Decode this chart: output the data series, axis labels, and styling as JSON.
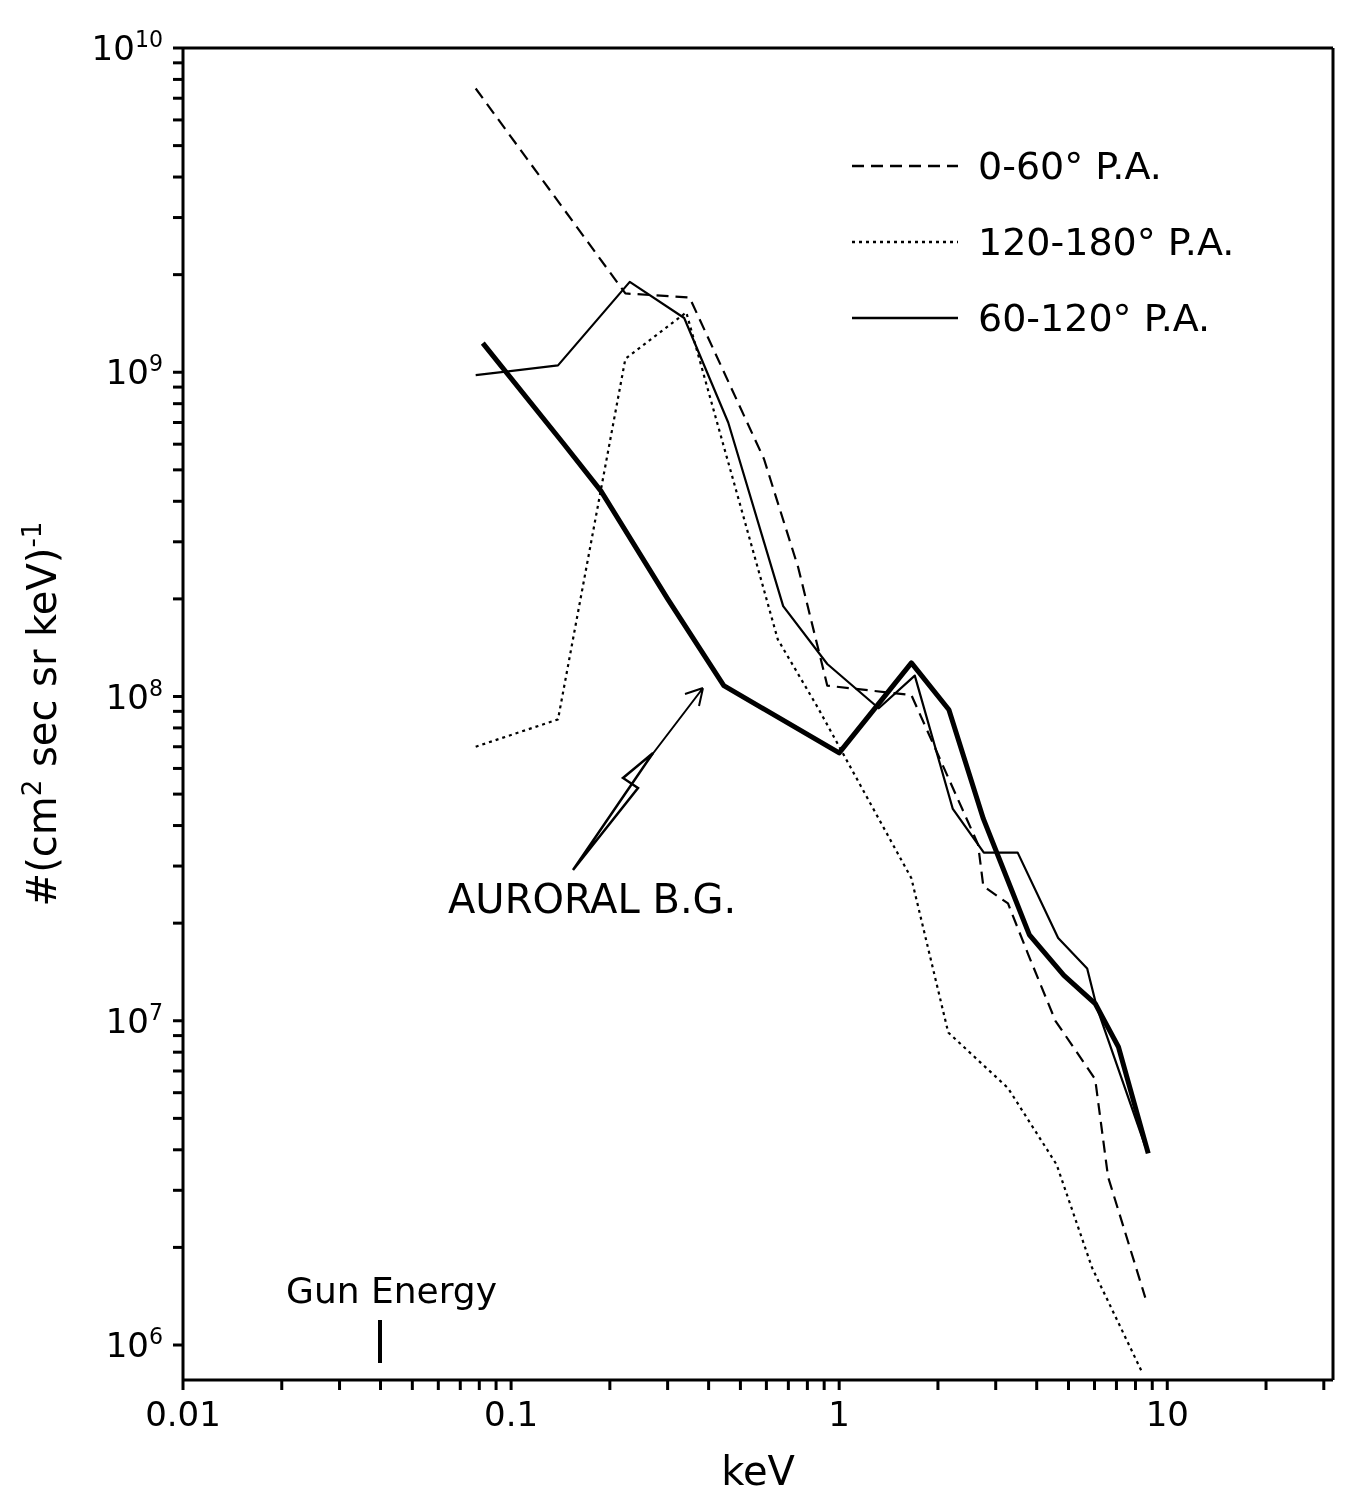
{
  "chart_data": {
    "type": "line",
    "xlabel": "keV",
    "ylabel": "#(cm$^{2}$ sec sr keV)$^{-1}$",
    "log": "xy",
    "grid": false,
    "legend": "top right",
    "xlim": [
      0.01,
      32
    ],
    "ylim": [
      780000,
      10000000000
    ],
    "xticks": [
      {
        "value": 0.01,
        "label": "0.01"
      },
      {
        "value": 0.02,
        "label": null
      },
      {
        "value": 0.03,
        "label": null
      },
      {
        "value": 0.04,
        "label": null
      },
      {
        "value": 0.05,
        "label": null
      },
      {
        "value": 0.06,
        "label": null
      },
      {
        "value": 0.07,
        "label": null
      },
      {
        "value": 0.08,
        "label": null
      },
      {
        "value": 0.09,
        "label": null
      },
      {
        "value": 0.1,
        "label": "0.1"
      },
      {
        "value": 0.2,
        "label": null
      },
      {
        "value": 0.3,
        "label": null
      },
      {
        "value": 0.4,
        "label": null
      },
      {
        "value": 0.5,
        "label": null
      },
      {
        "value": 0.6,
        "label": null
      },
      {
        "value": 0.7,
        "label": null
      },
      {
        "value": 0.8,
        "label": null
      },
      {
        "value": 0.9,
        "label": null
      },
      1,
      {
        "value": 2,
        "label": null
      },
      {
        "value": 3,
        "label": null
      },
      {
        "value": 4,
        "label": null
      },
      {
        "value": 5,
        "label": null
      },
      {
        "value": 6,
        "label": null
      },
      {
        "value": 7,
        "label": null
      },
      {
        "value": 8,
        "label": null
      },
      {
        "value": 9,
        "label": null
      },
      10,
      {
        "value": 20,
        "label": null
      },
      {
        "value": 30,
        "label": null
      }
    ],
    "yticks": [
      {
        "value": 1000000,
        "label": "10$^{6}$"
      },
      {
        "value": 2000000,
        "label": null
      },
      {
        "value": 3000000,
        "label": null
      },
      {
        "value": 4000000,
        "label": null
      },
      {
        "value": 5000000,
        "label": null
      },
      {
        "value": 6000000,
        "label": null
      },
      {
        "value": 7000000,
        "label": null
      },
      {
        "value": 8000000,
        "label": null
      },
      {
        "value": 9000000,
        "label": null
      },
      {
        "value": 10000000,
        "label": "10$^{7}$"
      },
      {
        "value": 20000000,
        "label": null
      },
      {
        "value": 30000000,
        "label": null
      },
      {
        "value": 40000000,
        "label": null
      },
      {
        "value": 50000000,
        "label": null
      },
      {
        "value": 60000000,
        "label": null
      },
      {
        "value": 70000000,
        "label": null
      },
      {
        "value": 80000000,
        "label": null
      },
      {
        "value": 90000000,
        "label": null
      },
      {
        "value": 100000000,
        "label": "10$^{8}$"
      },
      {
        "value": 200000000,
        "label": null
      },
      {
        "value": 300000000,
        "label": null
      },
      {
        "value": 400000000,
        "label": null
      },
      {
        "value": 500000000,
        "label": null
      },
      {
        "value": 600000000,
        "label": null
      },
      {
        "value": 700000000,
        "label": null
      },
      {
        "value": 800000000,
        "label": null
      },
      {
        "value": 900000000,
        "label": null
      },
      {
        "value": 1000000000,
        "label": "10$^{9}$"
      },
      {
        "value": 2000000000,
        "label": null
      },
      {
        "value": 3000000000,
        "label": null
      },
      {
        "value": 4000000000,
        "label": null
      },
      {
        "value": 5000000000,
        "label": null
      },
      {
        "value": 6000000000,
        "label": null
      },
      {
        "value": 7000000000,
        "label": null
      },
      {
        "value": 8000000000,
        "label": null
      },
      {
        "value": 9000000000,
        "label": null
      },
      {
        "value": 10000000000,
        "label": "10$^{10}$"
      }
    ],
    "series": [
      {
        "name": "0-60° P.A.",
        "color": "#000000",
        "line_style": "dashed",
        "x": [
          0.078,
          0.223,
          0.35,
          0.59,
          0.75,
          0.92,
          1.66,
          2.65,
          2.75,
          3.27,
          3.77,
          4.56,
          6.03,
          6.6,
          8.57
        ],
        "values": [
          7500000000,
          1750000000,
          1700000000,
          540000000,
          250000000,
          108000000,
          101000000,
          35000000,
          26000000,
          23000000,
          16000000,
          10000000,
          6600000,
          3300000,
          1400000
        ]
      },
      {
        "name": "120-180° P.A.",
        "color": "#000000",
        "line_style": "dotted",
        "x": [
          0.078,
          0.139,
          0.223,
          0.342,
          0.65,
          0.863,
          1.66,
          2.15,
          3.27,
          4.6,
          5.9,
          8.4
        ],
        "values": [
          70000000,
          85000000,
          1100000000,
          1530000000,
          150000000,
          92000000,
          27500000,
          9200000,
          6200000,
          3600000,
          1730000,
          820000
        ]
      },
      {
        "name": "60-120° P.A.",
        "color": "#000000",
        "line_style": "solid",
        "x": [
          0.078,
          0.139,
          0.23,
          0.337,
          0.459,
          0.675,
          0.92,
          1.32,
          1.7,
          2.22,
          2.76,
          3.5,
          4.65,
          5.7,
          6.1,
          8.57
        ],
        "values": [
          980000000,
          1050000000,
          1900000000,
          1470000000,
          700000000,
          190000000,
          126000000,
          92000000,
          116000000,
          45000000,
          33000000,
          33000000,
          18000000,
          14500000,
          11000000,
          4100000
        ]
      },
      {
        "color": "#000000",
        "line_style": "solid",
        "x": [
          0.082,
          0.144,
          0.188,
          0.3,
          0.445,
          1.0,
          1.66,
          2.16,
          2.75,
          3.8,
          4.84,
          6.03,
          7.1,
          8.75
        ],
        "values": [
          1230000000,
          605000000,
          430000000,
          200000000,
          108000000,
          67000000,
          127000000,
          91000000,
          42000000,
          18400000,
          13800000,
          11300000,
          8300000,
          3900000
        ]
      }
    ],
    "annotations": [
      "AURORAL B.G.",
      "Gun Energy"
    ]
  }
}
